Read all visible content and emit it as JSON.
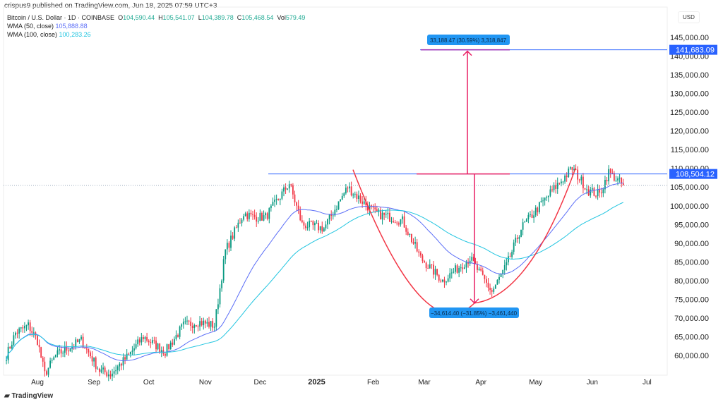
{
  "header": {
    "published": "crispus9 published on TradingView.com, Jun 18, 2025 07:59 UTC+3",
    "symbol": "Bitcoin / U.S. Dollar · 1D · COINBASE",
    "o_label": "O",
    "o": "104,590.44",
    "h_label": "H",
    "h": "105,541.07",
    "l_label": "L",
    "l": "104,389.78",
    "c_label": "C",
    "c": "105,468.54",
    "vol_label": "Vol",
    "vol": "579.49",
    "wma50_label": "WMA (50, close)",
    "wma50": "105,888.88",
    "wma100_label": "WMA (100, close)",
    "wma100": "100,283.26"
  },
  "currency": "USD",
  "footer": "TradingView",
  "colors": {
    "up": "#089981",
    "down": "#f23645",
    "wma50": "#5b6ef7",
    "wma100": "#22c5e0",
    "level": "#2962ff",
    "curve": "#f23645",
    "arrow": "#e91e63"
  },
  "chart_data": {
    "type": "candlestick",
    "ylim": [
      57000,
      148000
    ],
    "y_ticks": [
      145000,
      140000,
      135000,
      130000,
      125000,
      120000,
      115000,
      110000,
      105000,
      100000,
      95000,
      90000,
      85000,
      80000,
      75000,
      70000,
      65000,
      60000
    ],
    "y_tick_labels": [
      "145,000.00",
      "140,000.00",
      "135,000.00",
      "130,000.00",
      "125,000.00",
      "120,000.00",
      "115,000.00",
      "110,000.00",
      "105,000.00",
      "100,000.00",
      "95,000.00",
      "90,000.00",
      "85,000.00",
      "80,000.00",
      "75,000.00",
      "70,000.00",
      "65,000.00",
      "60,000.00"
    ],
    "x_labels": [
      {
        "t": "Aug",
        "day": 0
      },
      {
        "t": "Sep",
        "day": 31
      },
      {
        "t": "Oct",
        "day": 61
      },
      {
        "t": "Nov",
        "day": 92
      },
      {
        "t": "Dec",
        "day": 122
      },
      {
        "t": "2025",
        "day": 153
      },
      {
        "t": "Feb",
        "day": 184
      },
      {
        "t": "Mar",
        "day": 212
      },
      {
        "t": "Apr",
        "day": 243
      },
      {
        "t": "May",
        "day": 273
      },
      {
        "t": "Jun",
        "day": 304
      },
      {
        "t": "Jul",
        "day": 334
      }
    ],
    "close_keypoints_day_price": [
      [
        -17,
        60000
      ],
      [
        -12,
        66000
      ],
      [
        -5,
        68000
      ],
      [
        0,
        64000
      ],
      [
        4,
        55000
      ],
      [
        10,
        60000
      ],
      [
        24,
        64000
      ],
      [
        34,
        56000
      ],
      [
        40,
        55000
      ],
      [
        50,
        60000
      ],
      [
        58,
        65000
      ],
      [
        70,
        61000
      ],
      [
        80,
        68000
      ],
      [
        88,
        69000
      ],
      [
        97,
        68000
      ],
      [
        103,
        88000
      ],
      [
        113,
        98000
      ],
      [
        118,
        97000
      ],
      [
        125,
        97000
      ],
      [
        138,
        106000
      ],
      [
        145,
        95000
      ],
      [
        157,
        94000
      ],
      [
        170,
        105000
      ],
      [
        172,
        104000
      ],
      [
        185,
        98000
      ],
      [
        200,
        96000
      ],
      [
        210,
        86000
      ],
      [
        222,
        80000
      ],
      [
        237,
        86000
      ],
      [
        249,
        77000
      ],
      [
        257,
        84000
      ],
      [
        265,
        94000
      ],
      [
        282,
        104000
      ],
      [
        293,
        110000
      ],
      [
        302,
        104000
      ],
      [
        308,
        103000
      ],
      [
        313,
        109000
      ],
      [
        321,
        105400
      ]
    ],
    "levels": [
      {
        "price": 108504.12,
        "label": "108,504.12"
      },
      {
        "price": 141683.09,
        "label": "141,683.09"
      }
    ],
    "last_price": 105468.54,
    "measure_up": "33,188.47 (30.59%) 3,318,847",
    "measure_down": "−34,614.40 (−31.85%) −3,461,440"
  }
}
